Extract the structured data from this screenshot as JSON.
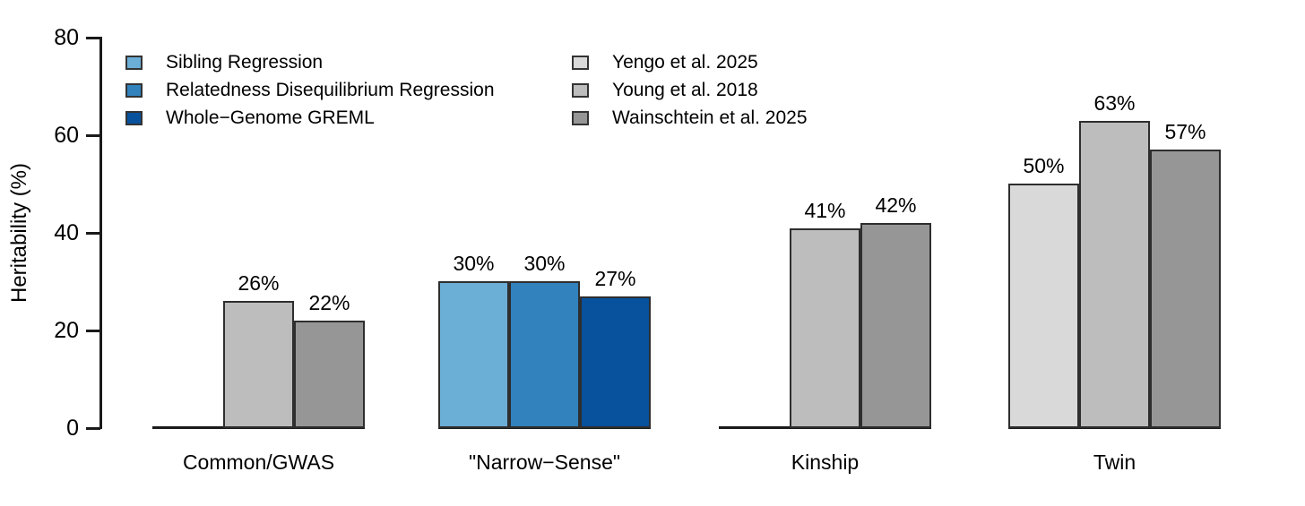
{
  "chart_data": {
    "type": "bar",
    "title": "",
    "xlabel": "",
    "ylabel": "Heritability (%)",
    "ylim": [
      0,
      80
    ],
    "yticks": [
      0,
      20,
      40,
      60,
      80
    ],
    "grid": false,
    "legend_position": "top-left-inside",
    "legend": {
      "columns": [
        {
          "entries": [
            {
              "label": "Sibling Regression",
              "color": "#6BAED6"
            },
            {
              "label": "Relatedness Disequilibrium Regression",
              "color": "#3182BD"
            },
            {
              "label": "Whole−Genome GREML",
              "color": "#08519C"
            }
          ]
        },
        {
          "entries": [
            {
              "label": "Yengo et al. 2025",
              "color": "#D9D9D9"
            },
            {
              "label": "Young et al. 2018",
              "color": "#BDBDBD"
            },
            {
              "label": "Wainschtein et al. 2025",
              "color": "#969696"
            }
          ]
        }
      ]
    },
    "categories": [
      "Common/GWAS",
      "\"Narrow−Sense\"",
      "Kinship",
      "Twin"
    ],
    "groups": [
      {
        "category": "Common/GWAS",
        "bars": [
          {
            "series": "Yengo et al. 2025",
            "value": null,
            "label": "",
            "color": "#D9D9D9"
          },
          {
            "series": "Young et al. 2018",
            "value": 26,
            "label": "26%",
            "color": "#BDBDBD"
          },
          {
            "series": "Wainschtein et al. 2025",
            "value": 22,
            "label": "22%",
            "color": "#969696"
          }
        ]
      },
      {
        "category": "\"Narrow−Sense\"",
        "bars": [
          {
            "series": "Sibling Regression",
            "value": 30,
            "label": "30%",
            "color": "#6BAED6"
          },
          {
            "series": "Relatedness Disequilibrium Regression",
            "value": 30,
            "label": "30%",
            "color": "#3182BD"
          },
          {
            "series": "Whole−Genome GREML",
            "value": 27,
            "label": "27%",
            "color": "#08519C"
          }
        ]
      },
      {
        "category": "Kinship",
        "bars": [
          {
            "series": "Yengo et al. 2025",
            "value": null,
            "label": "",
            "color": "#D9D9D9"
          },
          {
            "series": "Young et al. 2018",
            "value": 41,
            "label": "41%",
            "color": "#BDBDBD"
          },
          {
            "series": "Wainschtein et al. 2025",
            "value": 42,
            "label": "42%",
            "color": "#969696"
          }
        ]
      },
      {
        "category": "Twin",
        "bars": [
          {
            "series": "Yengo et al. 2025",
            "value": 50,
            "label": "50%",
            "color": "#D9D9D9"
          },
          {
            "series": "Young et al. 2018",
            "value": 63,
            "label": "63%",
            "color": "#BDBDBD"
          },
          {
            "series": "Wainschtein et al. 2025",
            "value": 57,
            "label": "57%",
            "color": "#969696"
          }
        ]
      }
    ],
    "colors": {
      "axis": "#1a1a1a",
      "bar_border": "#2e2e2e",
      "text": "#000000",
      "background": "#FFFFFF"
    }
  }
}
